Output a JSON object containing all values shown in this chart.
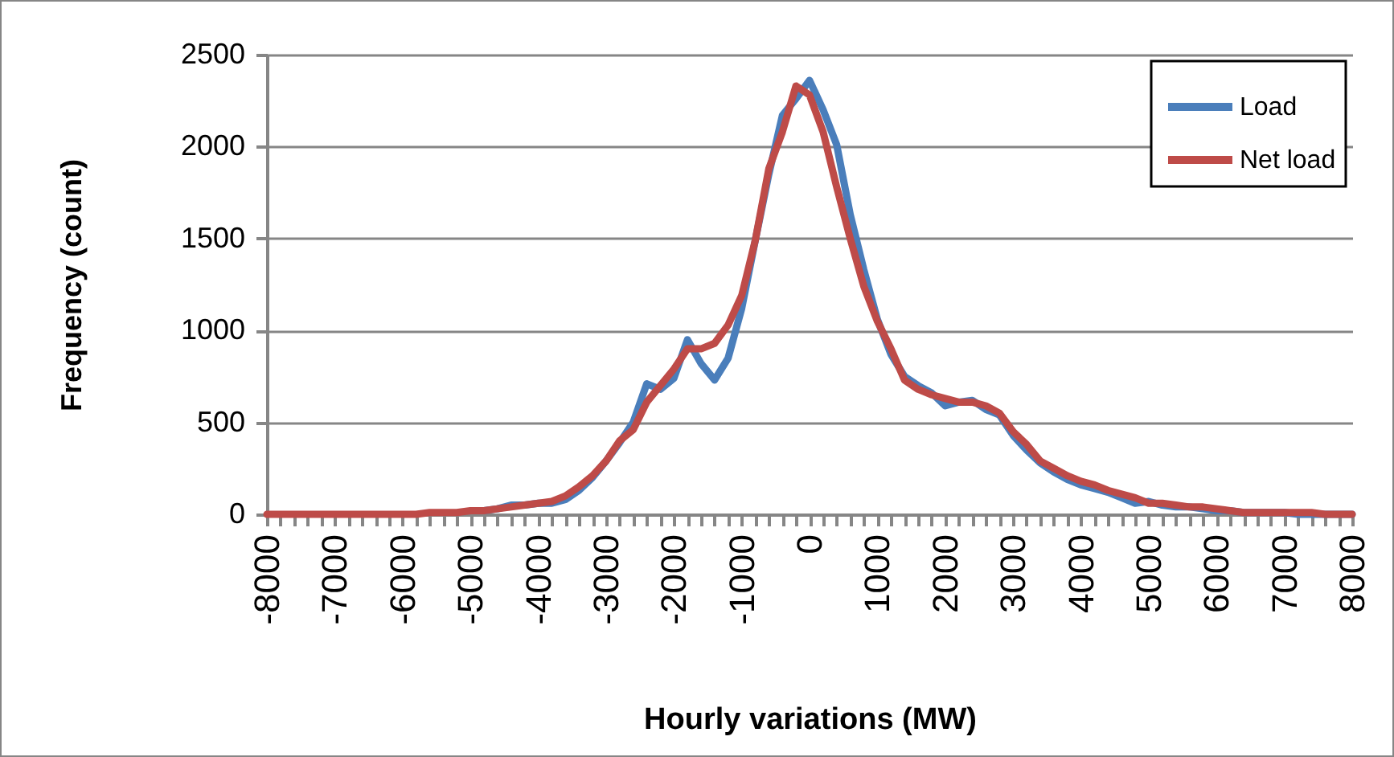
{
  "chart_data": {
    "type": "line",
    "xlabel": "Hourly variations (MW)",
    "ylabel": "Frequency (count)",
    "x": [
      -8000,
      -7800,
      -7600,
      -7400,
      -7200,
      -7000,
      -6800,
      -6600,
      -6400,
      -6200,
      -6000,
      -5800,
      -5600,
      -5400,
      -5200,
      -5000,
      -4800,
      -4600,
      -4400,
      -4200,
      -4000,
      -3800,
      -3600,
      -3400,
      -3200,
      -3000,
      -2800,
      -2600,
      -2400,
      -2200,
      -2000,
      -1800,
      -1600,
      -1400,
      -1200,
      -1000,
      -800,
      -600,
      -400,
      -200,
      0,
      200,
      400,
      600,
      800,
      1000,
      1200,
      1400,
      1600,
      1800,
      2000,
      2200,
      2400,
      2600,
      2800,
      3000,
      3200,
      3400,
      3600,
      3800,
      4000,
      4200,
      4400,
      4600,
      4800,
      5000,
      5200,
      5400,
      5600,
      5800,
      6000,
      6200,
      6400,
      6600,
      6800,
      7000,
      7200,
      7400,
      7600,
      7800,
      8000
    ],
    "series": [
      {
        "name": "Load",
        "color": "#4a7ebb",
        "values": [
          null,
          null,
          null,
          null,
          null,
          null,
          null,
          null,
          null,
          null,
          null,
          null,
          null,
          null,
          null,
          null,
          20,
          30,
          50,
          50,
          60,
          60,
          80,
          130,
          200,
          290,
          390,
          500,
          710,
          680,
          740,
          950,
          820,
          730,
          850,
          1120,
          1490,
          1850,
          2170,
          2260,
          2360,
          2200,
          2010,
          1630,
          1330,
          1060,
          870,
          750,
          700,
          660,
          590,
          610,
          620,
          570,
          540,
          430,
          350,
          280,
          230,
          190,
          160,
          140,
          120,
          90,
          60,
          70,
          50,
          40,
          40,
          30,
          20,
          20,
          10,
          10,
          10,
          10,
          0,
          0,
          0,
          0,
          0
        ]
      },
      {
        "name": "Net load",
        "color": "#be4b48",
        "values": [
          0,
          0,
          0,
          0,
          0,
          0,
          0,
          0,
          0,
          0,
          0,
          0,
          10,
          10,
          10,
          20,
          20,
          30,
          40,
          50,
          60,
          70,
          100,
          150,
          210,
          290,
          400,
          460,
          610,
          700,
          790,
          900,
          900,
          930,
          1030,
          1190,
          1490,
          1880,
          2080,
          2330,
          2280,
          2080,
          1780,
          1500,
          1240,
          1050,
          900,
          730,
          680,
          650,
          630,
          610,
          610,
          590,
          550,
          450,
          380,
          290,
          250,
          210,
          180,
          160,
          130,
          110,
          90,
          60,
          60,
          50,
          40,
          40,
          30,
          20,
          10,
          10,
          10,
          10,
          10,
          10,
          0,
          0,
          0
        ]
      }
    ],
    "xlim": [
      -8000,
      8000
    ],
    "xticks": [
      -8000,
      {
        "value": -7800,
        "label": null
      },
      {
        "value": -7600,
        "label": null
      },
      {
        "value": -7400,
        "label": null
      },
      {
        "value": -7200,
        "label": null
      },
      -7000,
      {
        "value": -6800,
        "label": null
      },
      {
        "value": -6600,
        "label": null
      },
      {
        "value": -6400,
        "label": null
      },
      {
        "value": -6200,
        "label": null
      },
      -6000,
      {
        "value": -5800,
        "label": null
      },
      {
        "value": -5600,
        "label": null
      },
      {
        "value": -5400,
        "label": null
      },
      {
        "value": -5200,
        "label": null
      },
      -5000,
      {
        "value": -4800,
        "label": null
      },
      {
        "value": -4600,
        "label": null
      },
      {
        "value": -4400,
        "label": null
      },
      {
        "value": -4200,
        "label": null
      },
      -4000,
      {
        "value": -3800,
        "label": null
      },
      {
        "value": -3600,
        "label": null
      },
      {
        "value": -3400,
        "label": null
      },
      {
        "value": -3200,
        "label": null
      },
      -3000,
      {
        "value": -2800,
        "label": null
      },
      {
        "value": -2600,
        "label": null
      },
      {
        "value": -2400,
        "label": null
      },
      {
        "value": -2200,
        "label": null
      },
      -2000,
      {
        "value": -1800,
        "label": null
      },
      {
        "value": -1600,
        "label": null
      },
      {
        "value": -1400,
        "label": null
      },
      {
        "value": -1200,
        "label": null
      },
      -1000,
      {
        "value": -800,
        "label": null
      },
      {
        "value": -600,
        "label": null
      },
      {
        "value": -400,
        "label": null
      },
      {
        "value": -200,
        "label": null
      },
      0,
      {
        "value": 200,
        "label": null
      },
      {
        "value": 400,
        "label": null
      },
      {
        "value": 600,
        "label": null
      },
      {
        "value": 800,
        "label": null
      },
      1000,
      {
        "value": 1200,
        "label": null
      },
      {
        "value": 1400,
        "label": null
      },
      {
        "value": 1600,
        "label": null
      },
      {
        "value": 1800,
        "label": null
      },
      2000,
      {
        "value": 2200,
        "label": null
      },
      {
        "value": 2400,
        "label": null
      },
      {
        "value": 2600,
        "label": null
      },
      {
        "value": 2800,
        "label": null
      },
      3000,
      {
        "value": 3200,
        "label": null
      },
      {
        "value": 3400,
        "label": null
      },
      {
        "value": 3600,
        "label": null
      },
      {
        "value": 3800,
        "label": null
      },
      4000,
      {
        "value": 4200,
        "label": null
      },
      {
        "value": 4400,
        "label": null
      },
      {
        "value": 4600,
        "label": null
      },
      {
        "value": 4800,
        "label": null
      },
      5000,
      {
        "value": 5200,
        "label": null
      },
      {
        "value": 5400,
        "label": null
      },
      {
        "value": 5600,
        "label": null
      },
      {
        "value": 5800,
        "label": null
      },
      6000,
      {
        "value": 6200,
        "label": null
      },
      {
        "value": 6400,
        "label": null
      },
      {
        "value": 6600,
        "label": null
      },
      {
        "value": 6800,
        "label": null
      },
      7000,
      {
        "value": 7200,
        "label": null
      },
      {
        "value": 7400,
        "label": null
      },
      {
        "value": 7600,
        "label": null
      },
      {
        "value": 7800,
        "label": null
      },
      8000
    ],
    "ylim": [
      0,
      2500
    ],
    "yticks": [
      0,
      500,
      1000,
      1500,
      2000,
      2500
    ],
    "grid": "y",
    "legend": "top right"
  }
}
